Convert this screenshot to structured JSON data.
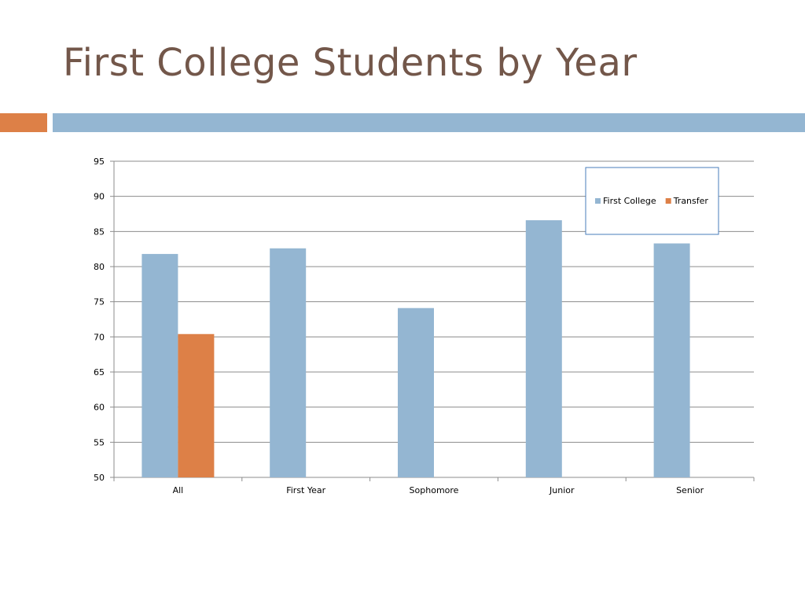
{
  "slide": {
    "title": "First College Students by Year"
  },
  "colors": {
    "title": "#73574a",
    "band_left": "#dd8047",
    "band_right": "#94b6d2",
    "series_first_college": "#94b6d2",
    "series_transfer": "#dd8047",
    "grid": "#8c8c8c",
    "axis": "#8c8c8c",
    "legend_border": "#4a7ebb"
  },
  "chart_data": {
    "type": "bar",
    "title": "",
    "xlabel": "",
    "ylabel": "",
    "categories": [
      "All",
      "First Year",
      "Sophomore",
      "Junior",
      "Senior"
    ],
    "ylim": [
      50,
      95
    ],
    "yticks": [
      50,
      55,
      60,
      65,
      70,
      75,
      80,
      85,
      90,
      95
    ],
    "grid": true,
    "legend_position": "top-right",
    "series": [
      {
        "name": "First College",
        "color": "#94b6d2",
        "values": [
          81.8,
          82.6,
          74.1,
          86.6,
          83.3
        ]
      },
      {
        "name": "Transfer",
        "color": "#dd8047",
        "values": [
          70.4,
          null,
          null,
          null,
          null
        ]
      }
    ]
  }
}
